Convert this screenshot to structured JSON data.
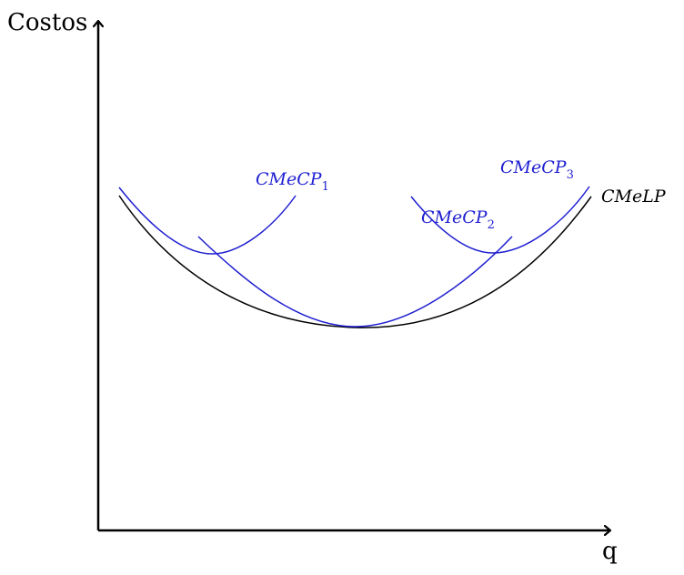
{
  "axes": {
    "y_label": "Costos",
    "x_label": "q"
  },
  "colors": {
    "long_run": "#000000",
    "short_run": "#1f1fd1",
    "axis": "#000000"
  },
  "curves": {
    "long_run": {
      "label_main": "CMeLP",
      "label_sub": ""
    },
    "short_run_1": {
      "label_main": "CMeCP",
      "label_sub": "1"
    },
    "short_run_2": {
      "label_main": "CMeCP",
      "label_sub": "2"
    },
    "short_run_3": {
      "label_main": "CMeCP",
      "label_sub": "3"
    }
  }
}
